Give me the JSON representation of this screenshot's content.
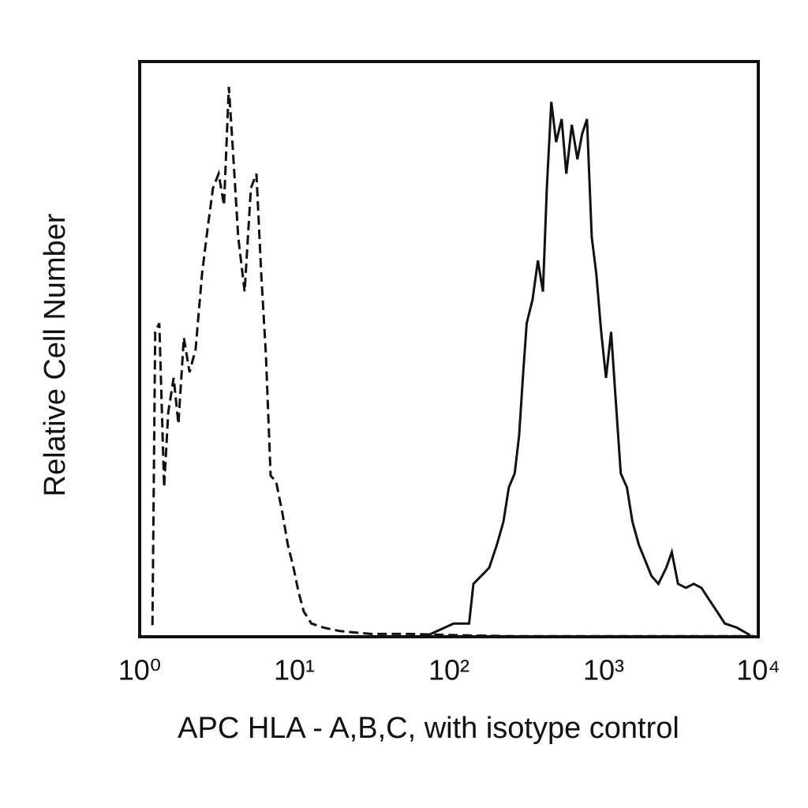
{
  "chart_data": {
    "type": "line",
    "x_label": "APC HLA - A,B,C, with isotype control",
    "y_label": "Relative Cell Number",
    "xscale": "log",
    "xlim": [
      1,
      10000
    ],
    "xticks": [
      {
        "value": 1,
        "label": "10⁰"
      },
      {
        "value": 10,
        "label": "10¹"
      },
      {
        "value": 100,
        "label": "10²"
      },
      {
        "value": 1000,
        "label": "10³"
      },
      {
        "value": 10000,
        "label": "10⁴"
      }
    ],
    "ylim": [
      0,
      100
    ],
    "series": [
      {
        "name": "isotype control",
        "color": "#111111",
        "linestyle": "dashed",
        "x": [
          1.21,
          1.26,
          1.34,
          1.44,
          1.53,
          1.66,
          1.78,
          1.93,
          2.1,
          2.3,
          2.53,
          2.75,
          2.98,
          3.24,
          3.51,
          3.77,
          4.0,
          4.34,
          4.77,
          5.24,
          5.69,
          6.11,
          6.55,
          7.03,
          7.62,
          8.37,
          9.08,
          9.88,
          10.6,
          11.5,
          12.9,
          15.4,
          19.6,
          31.2,
          56,
          101,
          258,
          1500,
          9300
        ],
        "values": [
          2,
          53,
          54.5,
          26,
          39,
          45,
          37,
          52,
          46,
          50,
          63,
          71,
          78,
          80.5,
          75,
          95.6,
          85,
          69.5,
          60,
          78,
          80.5,
          63,
          49,
          28,
          27,
          21.5,
          16,
          12,
          8,
          4.4,
          2.3,
          1.6,
          1,
          0.5,
          0.5,
          0.3,
          0.1,
          0.1,
          0.1
        ]
      },
      {
        "name": "APC HLA - A,B,C",
        "color": "#111111",
        "linestyle": "solid",
        "x": [
          71,
          107,
          135,
          144,
          162,
          182,
          204,
          225,
          244,
          266,
          284,
          302,
          318,
          347,
          376,
          405,
          429,
          459,
          493,
          535,
          574,
          623,
          677,
          726,
          780,
          837,
          898,
          964,
          1036,
          1118,
          1191,
          1290,
          1415,
          1536,
          1689,
          1855,
          2036,
          2261,
          2543,
          2760,
          3027,
          3400,
          3820,
          4290,
          4820,
          5410,
          6080,
          7250,
          8830
        ],
        "values": [
          0.1,
          2.3,
          2.3,
          9.2,
          10.6,
          12,
          16,
          20,
          26,
          28.4,
          35,
          46,
          54.5,
          58.6,
          65.4,
          60,
          78,
          93,
          86,
          90,
          80.5,
          89,
          83,
          87.4,
          90,
          69.5,
          63,
          53,
          45,
          53,
          42,
          28.4,
          26,
          20,
          16,
          13.3,
          10.6,
          9.2,
          12,
          14.7,
          9.2,
          8.5,
          9.2,
          8.5,
          6.4,
          4.4,
          2.3,
          1.6,
          0.3
        ]
      }
    ]
  }
}
